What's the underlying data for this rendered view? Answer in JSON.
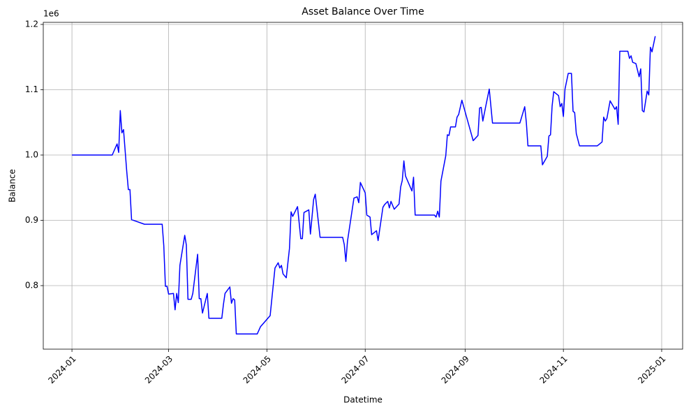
{
  "chart_data": {
    "type": "line",
    "title": "Asset Balance Over Time",
    "x_label": "Datetime",
    "y_label": "Balance",
    "y_offset_label": "1e6",
    "x": [
      19723,
      19748,
      19751,
      19752,
      19753,
      19754,
      19755,
      19757,
      19758,
      19759,
      19760,
      19768,
      19779,
      19780,
      19781,
      19782,
      19783,
      19786,
      19787,
      19788,
      19789,
      19790,
      19793,
      19794,
      19795,
      19797,
      19798,
      19801,
      19802,
      19803,
      19804,
      19807,
      19808,
      19816,
      19817,
      19818,
      19821,
      19822,
      19823,
      19824,
      19825,
      19838,
      19840,
      19846,
      19849,
      19851,
      19852,
      19853,
      19854,
      19856,
      19858,
      19859,
      19860,
      19863,
      19865,
      19866,
      19867,
      19870,
      19871,
      19873,
      19874,
      19877,
      19891,
      19892,
      19893,
      19894,
      19898,
      19900,
      19901,
      19902,
      19905,
      19906,
      19908,
      19909,
      19912,
      19913,
      19916,
      19917,
      19919,
      19920,
      19921,
      19923,
      19926,
      19927,
      19928,
      19929,
      19930,
      19934,
      19935,
      19936,
      19948,
      19949,
      19950,
      19951,
      19952,
      19955,
      19956,
      19957,
      19958,
      19961,
      19962,
      19963,
      19965,
      19971,
      19972,
      19975,
      19976,
      19977,
      19978,
      19980,
      19982,
      19984,
      20001,
      20004,
      20005,
      20006,
      20014,
      20015,
      20018,
      20019,
      20020,
      20021,
      20022,
      20025,
      20026,
      20027,
      20028,
      20029,
      20031,
      20033,
      20034,
      20035,
      20036,
      20038,
      20049,
      20052,
      20053,
      20054,
      20055,
      20057,
      20060,
      20061,
      20062,
      20063,
      20068,
      20069,
      20070,
      20071,
      20073,
      20075,
      20076,
      20077,
      20078,
      20080,
      20081,
      20082,
      20083,
      20085
    ],
    "values": [
      1.0,
      1.0,
      1.017,
      1.004,
      1.068,
      1.034,
      1.039,
      0.975,
      0.947,
      0.947,
      0.901,
      0.894,
      0.894,
      0.861,
      0.799,
      0.799,
      0.787,
      0.788,
      0.763,
      0.788,
      0.774,
      0.831,
      0.877,
      0.862,
      0.779,
      0.779,
      0.788,
      0.848,
      0.78,
      0.78,
      0.758,
      0.788,
      0.75,
      0.75,
      0.771,
      0.788,
      0.798,
      0.773,
      0.78,
      0.778,
      0.726,
      0.726,
      0.737,
      0.754,
      0.827,
      0.835,
      0.827,
      0.831,
      0.818,
      0.812,
      0.857,
      0.913,
      0.906,
      0.921,
      0.872,
      0.872,
      0.912,
      0.916,
      0.879,
      0.932,
      0.94,
      0.874,
      0.874,
      0.863,
      0.837,
      0.868,
      0.934,
      0.936,
      0.927,
      0.958,
      0.942,
      0.908,
      0.905,
      0.878,
      0.884,
      0.869,
      0.92,
      0.924,
      0.929,
      0.919,
      0.929,
      0.917,
      0.925,
      0.951,
      0.961,
      0.991,
      0.968,
      0.945,
      0.966,
      0.908,
      0.908,
      0.905,
      0.914,
      0.905,
      0.96,
      0.999,
      1.031,
      1.03,
      1.043,
      1.043,
      1.058,
      1.062,
      1.084,
      1.031,
      1.022,
      1.03,
      1.072,
      1.073,
      1.052,
      1.077,
      1.101,
      1.049,
      1.049,
      1.074,
      1.05,
      1.014,
      1.014,
      0.985,
      0.998,
      1.029,
      1.031,
      1.075,
      1.097,
      1.091,
      1.074,
      1.079,
      1.059,
      1.101,
      1.125,
      1.125,
      1.067,
      1.065,
      1.033,
      1.014,
      1.014,
      1.02,
      1.058,
      1.052,
      1.056,
      1.083,
      1.07,
      1.074,
      1.047,
      1.159,
      1.159,
      1.148,
      1.152,
      1.142,
      1.14,
      1.12,
      1.132,
      1.068,
      1.066,
      1.098,
      1.092,
      1.165,
      1.158,
      1.182
    ],
    "color": "#0000ff",
    "xlim": [
      19705.2,
      20102
    ],
    "ylim": [
      0.7027,
      1.2032
    ],
    "xticks": [
      {
        "value": 19723,
        "label": "2024-01"
      },
      {
        "value": 19783,
        "label": "2024-03"
      },
      {
        "value": 19844,
        "label": "2024-05"
      },
      {
        "value": 19905,
        "label": "2024-07"
      },
      {
        "value": 19967,
        "label": "2024-09"
      },
      {
        "value": 20028,
        "label": "2024-11"
      },
      {
        "value": 20089,
        "label": "2025-01"
      }
    ],
    "yticks": [
      0.8,
      0.9,
      {
        "value": 1,
        "label": "1.0"
      },
      1.1,
      1.2
    ],
    "grid": true
  }
}
